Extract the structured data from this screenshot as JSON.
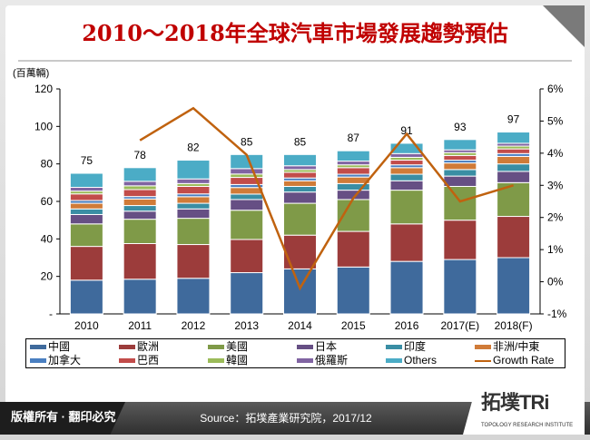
{
  "title": "2010～2018年全球汽車市場發展趨勢預估",
  "footer": {
    "rights": "版權所有 · 翻印必究",
    "source": "Source：拓墣產業研究院，2017/12",
    "logo": "拓墣TRi",
    "logo_sub": "TOPOLOGY RESEARCH INSTITUTE"
  },
  "chart_data": {
    "type": "bar",
    "stacked": true,
    "ylabel": "(百萬輛)",
    "ylim": [
      0,
      120
    ],
    "yticks": [
      "-",
      "20",
      "40",
      "60",
      "80",
      "100",
      "120"
    ],
    "y2lim": [
      -1,
      6
    ],
    "y2ticks": [
      "-1%",
      "0%",
      "1%",
      "2%",
      "3%",
      "4%",
      "5%",
      "6%"
    ],
    "categories": [
      "2010",
      "2011",
      "2012",
      "2013",
      "2014",
      "2015",
      "2016",
      "2017(E)",
      "2018(F)"
    ],
    "totals": [
      "75",
      "78",
      "82",
      "85",
      "85",
      "87",
      "91",
      "93",
      "97"
    ],
    "legend_position": "bottom",
    "series": [
      {
        "name": "中國",
        "color": "#3f6a9c",
        "values": [
          18,
          18.5,
          19,
          22,
          24,
          25,
          28,
          29,
          30
        ]
      },
      {
        "name": "歐洲",
        "color": "#9c3c3b",
        "values": [
          18,
          19,
          18,
          17.7,
          18,
          19,
          20,
          21,
          22
        ]
      },
      {
        "name": "美國",
        "color": "#7f9a48",
        "values": [
          12,
          13,
          14,
          15.6,
          17,
          17,
          18,
          18,
          18
        ]
      },
      {
        "name": "日本",
        "color": "#664f84",
        "values": [
          5,
          4.3,
          5,
          5.7,
          6,
          5,
          5,
          5.5,
          6
        ]
      },
      {
        "name": "印度",
        "color": "#3a8ea4",
        "values": [
          3,
          3,
          3,
          2.9,
          3,
          3.5,
          3.5,
          3.5,
          4
        ]
      },
      {
        "name": "非洲/中東",
        "color": "#d07b38",
        "values": [
          3,
          3.5,
          3.5,
          3.5,
          3,
          3.5,
          3.5,
          3.5,
          4
        ]
      },
      {
        "name": "加拿大",
        "color": "#4a7fc1",
        "values": [
          1.5,
          1.3,
          1.5,
          1.6,
          1.5,
          1.5,
          1.5,
          1.5,
          1.5
        ]
      },
      {
        "name": "巴西",
        "color": "#c24c4a",
        "values": [
          3.5,
          3.7,
          4,
          3.8,
          3,
          3.5,
          2.5,
          2.5,
          2.5
        ]
      },
      {
        "name": "韓國",
        "color": "#9bbb59",
        "values": [
          1.5,
          2,
          1.5,
          1.8,
          1.5,
          1.5,
          1.5,
          1.5,
          1.5
        ]
      },
      {
        "name": "俄羅斯",
        "color": "#8064a2",
        "values": [
          2,
          2.4,
          2.5,
          2.9,
          2,
          2,
          2,
          1.5,
          1.5
        ]
      },
      {
        "name": "Others",
        "color": "#4bacc6",
        "values": [
          7.5,
          7.3,
          10,
          7.5,
          6,
          5.5,
          5.5,
          5.5,
          6
        ]
      }
    ],
    "line": {
      "name": "Growth Rate",
      "color": "#c0620f",
      "axis": "right",
      "values": [
        null,
        4.4,
        5.4,
        3.95,
        -0.2,
        2.6,
        4.6,
        2.5,
        3.0
      ]
    }
  }
}
